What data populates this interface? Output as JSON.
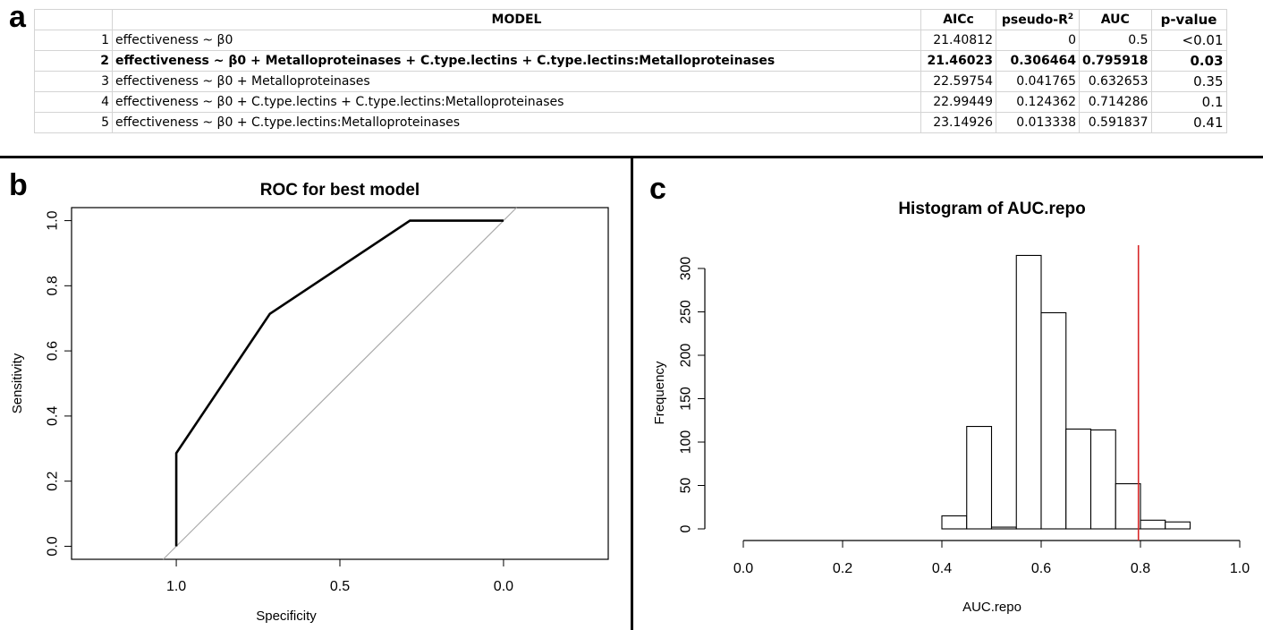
{
  "panels": {
    "a": "a",
    "b": "b",
    "c": "c"
  },
  "table": {
    "headers": {
      "idx": "",
      "model": "MODEL",
      "aicc": "AICc",
      "pseudo_r2": "pseudo-R",
      "pseudo_r2_sup": "2",
      "auc": "AUC",
      "pvalue": "p-value"
    },
    "rows": [
      {
        "idx": "1",
        "model": "effectiveness ~ β0",
        "aicc": "21.40812",
        "pseudo_r2": "0",
        "auc": "0.5",
        "pvalue": "<0.01"
      },
      {
        "idx": "2",
        "model": "effectiveness ~ β0 + Metalloproteinases + C.type.lectins + C.type.lectins:Metalloproteinases",
        "aicc": "21.46023",
        "pseudo_r2": "0.306464",
        "auc": "0.795918",
        "pvalue": "0.03"
      },
      {
        "idx": "3",
        "model": "effectiveness ~ β0 + Metalloproteinases",
        "aicc": "22.59754",
        "pseudo_r2": "0.041765",
        "auc": "0.632653",
        "pvalue": "0.35"
      },
      {
        "idx": "4",
        "model": "effectiveness ~ β0 + C.type.lectins + C.type.lectins:Metalloproteinases",
        "aicc": "22.99449",
        "pseudo_r2": "0.124362",
        "auc": "0.714286",
        "pvalue": "0.1"
      },
      {
        "idx": "5",
        "model": "effectiveness ~ β0 + C.type.lectins:Metalloproteinases",
        "aicc": "23.14926",
        "pseudo_r2": "0.013338",
        "auc": "0.591837",
        "pvalue": "0.41"
      }
    ]
  },
  "chart_data": [
    {
      "type": "line",
      "title": "ROC for best model",
      "xlabel": "Specificity",
      "ylabel": "Sensitivity",
      "xlim": [
        1.32,
        -0.32
      ],
      "ylim": [
        -0.04,
        1.04
      ],
      "x_ticks": [
        1.0,
        0.5,
        0.0
      ],
      "x_tick_labels": [
        "1.0",
        "0.5",
        "0.0"
      ],
      "y_ticks": [
        0.0,
        0.2,
        0.4,
        0.6,
        0.8,
        1.0
      ],
      "y_tick_labels": [
        "0.0",
        "0.2",
        "0.4",
        "0.6",
        "0.8",
        "1.0"
      ],
      "series": [
        {
          "specificity": [
            1.0,
            1.0,
            0.714,
            0.286,
            0.0
          ],
          "sensitivity": [
            0.0,
            0.286,
            0.714,
            1.0,
            1.0
          ]
        }
      ],
      "reference_line": {
        "specificity": [
          1.04,
          -0.04
        ],
        "sensitivity": [
          -0.04,
          1.04
        ],
        "color": "#aaaaaa"
      },
      "grid": false
    },
    {
      "type": "bar",
      "title": "Histogram of AUC.repo",
      "xlabel": "AUC.repo",
      "ylabel": "Frequency",
      "xlim": [
        0.0,
        1.0
      ],
      "ylim": [
        0,
        330
      ],
      "x_ticks": [
        0.0,
        0.2,
        0.4,
        0.6,
        0.8,
        1.0
      ],
      "x_tick_labels": [
        "0.0",
        "0.2",
        "0.4",
        "0.6",
        "0.8",
        "1.0"
      ],
      "y_ticks": [
        0,
        50,
        100,
        150,
        200,
        250,
        300
      ],
      "y_tick_labels": [
        "0",
        "50",
        "100",
        "150",
        "200",
        "250",
        "300"
      ],
      "bins": [
        {
          "from": 0.4,
          "to": 0.45,
          "count": 15
        },
        {
          "from": 0.45,
          "to": 0.5,
          "count": 118
        },
        {
          "from": 0.5,
          "to": 0.55,
          "count": 2
        },
        {
          "from": 0.55,
          "to": 0.6,
          "count": 315
        },
        {
          "from": 0.6,
          "to": 0.65,
          "count": 249
        },
        {
          "from": 0.65,
          "to": 0.7,
          "count": 115
        },
        {
          "from": 0.7,
          "to": 0.75,
          "count": 114
        },
        {
          "from": 0.75,
          "to": 0.8,
          "count": 52
        },
        {
          "from": 0.8,
          "to": 0.85,
          "count": 10
        },
        {
          "from": 0.85,
          "to": 0.9,
          "count": 8
        }
      ],
      "vline": {
        "x": 0.795918,
        "color": "#d62728"
      },
      "grid": false
    }
  ]
}
